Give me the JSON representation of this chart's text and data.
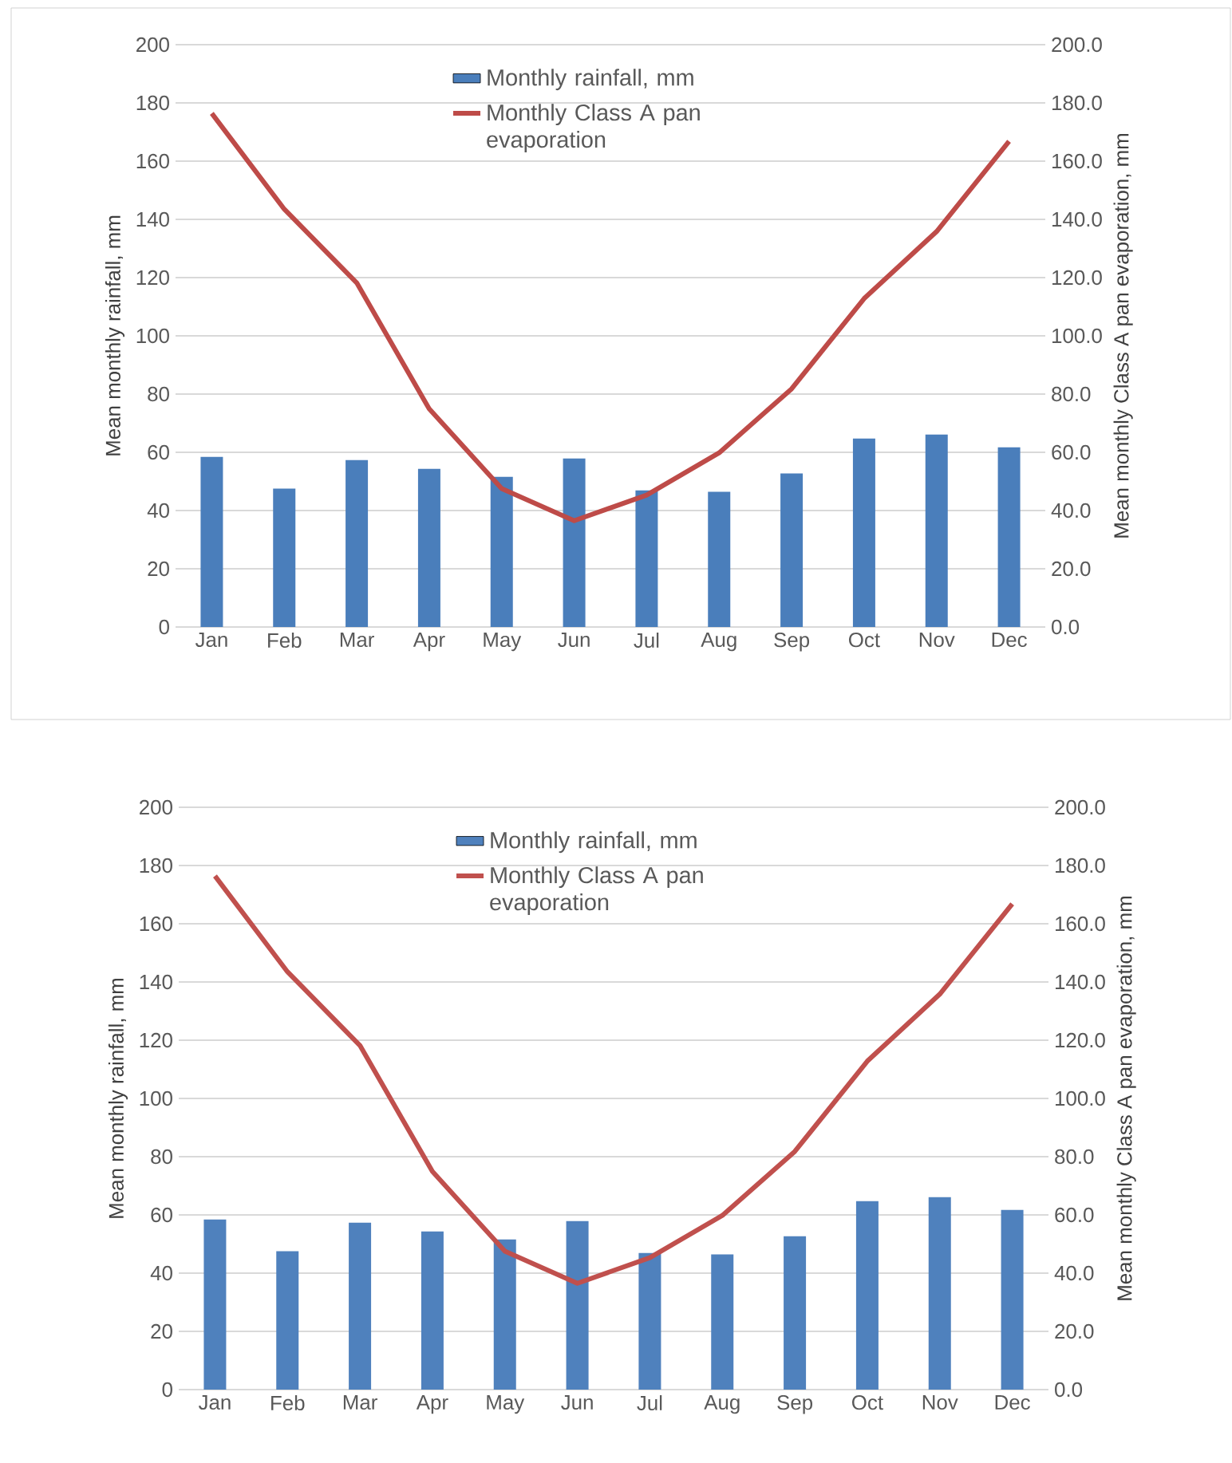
{
  "chart_data": [
    {
      "type": "bar",
      "ylabel": "Mean monthly rainfall, mm",
      "y2label": "Mean monthly Class A pan evaporation, mm",
      "categories": [
        "Jan",
        "Feb",
        "Mar",
        "Apr",
        "May",
        "Jun",
        "Jul",
        "Aug",
        "Sep",
        "Oct",
        "Nov",
        "Dec"
      ],
      "series": [
        {
          "name": "Monthly rainfall, mm",
          "color": "#4a7ebb",
          "values": [
            58.4,
            47.5,
            57.3,
            54.3,
            51.6,
            57.9,
            46.9,
            46.4,
            52.7,
            64.7,
            66.1,
            61.7
          ]
        },
        {
          "name": "Monthly Class A pan evaporation",
          "type": "line",
          "axis": "y2",
          "color": "#be4b48",
          "values": [
            176.4,
            143.5,
            118.2,
            74.9,
            47.5,
            36.5,
            45.3,
            59.8,
            81.8,
            112.8,
            135.8,
            166.8
          ]
        }
      ],
      "ylim": [
        0,
        200
      ],
      "yticks": [
        0,
        20,
        40,
        60,
        80,
        100,
        120,
        140,
        160,
        180,
        200
      ],
      "y2lim": [
        0,
        200
      ],
      "y2ticks": [
        {
          "value": 0,
          "label": "0.0"
        },
        {
          "value": 20,
          "label": "20.0"
        },
        {
          "value": 40,
          "label": "40.0"
        },
        {
          "value": 60,
          "label": "60.0"
        },
        {
          "value": 80,
          "label": "80.0"
        },
        {
          "value": 100,
          "label": "100.0"
        },
        {
          "value": 120,
          "label": "120.0"
        },
        {
          "value": 140,
          "label": "140.0"
        },
        {
          "value": 160,
          "label": "160.0"
        },
        {
          "value": 180,
          "label": "180.0"
        },
        {
          "value": 200,
          "label": "200.0"
        }
      ],
      "grid": "y",
      "legend": "top",
      "marker": "none",
      "line_style": "solid"
    },
    {
      "type": "bar",
      "ylabel": "Mean monthly rainfall, mm",
      "y2label": "Mean monthly Class A pan evaporation, mm",
      "categories": [
        "Jan",
        "Feb",
        "Mar",
        "Apr",
        "May",
        "Jun",
        "Jul",
        "Aug",
        "Sep",
        "Oct",
        "Nov",
        "Dec"
      ],
      "series": [
        {
          "name": "Monthly rainfall, mm",
          "color": "#4f81bd",
          "values": [
            58.4,
            47.5,
            57.3,
            54.3,
            51.6,
            57.9,
            46.9,
            46.4,
            52.7,
            64.7,
            66.1,
            61.7
          ]
        },
        {
          "name": "Monthly Class A pan evaporation",
          "type": "line",
          "axis": "y2",
          "color": "#c0504d",
          "values": [
            176.4,
            143.5,
            118.2,
            74.9,
            47.5,
            36.5,
            45.3,
            59.8,
            81.8,
            112.8,
            135.8,
            166.8
          ]
        }
      ],
      "ylim": [
        0,
        200
      ],
      "yticks": [
        0,
        20,
        40,
        60,
        80,
        100,
        120,
        140,
        160,
        180,
        200
      ],
      "y2lim": [
        0,
        200
      ],
      "y2ticks": [
        {
          "value": 0,
          "label": "0.0"
        },
        {
          "value": 20,
          "label": "20.0"
        },
        {
          "value": 40,
          "label": "40.0"
        },
        {
          "value": 60,
          "label": "60.0"
        },
        {
          "value": 80,
          "label": "80.0"
        },
        {
          "value": 100,
          "label": "100.0"
        },
        {
          "value": 120,
          "label": "120.0"
        },
        {
          "value": 140,
          "label": "140.0"
        },
        {
          "value": 160,
          "label": "160.0"
        },
        {
          "value": 180,
          "label": "180.0"
        },
        {
          "value": 200,
          "label": "200.0"
        }
      ],
      "grid": "y",
      "legend": "top",
      "marker": "none",
      "line_style": "solid"
    }
  ]
}
